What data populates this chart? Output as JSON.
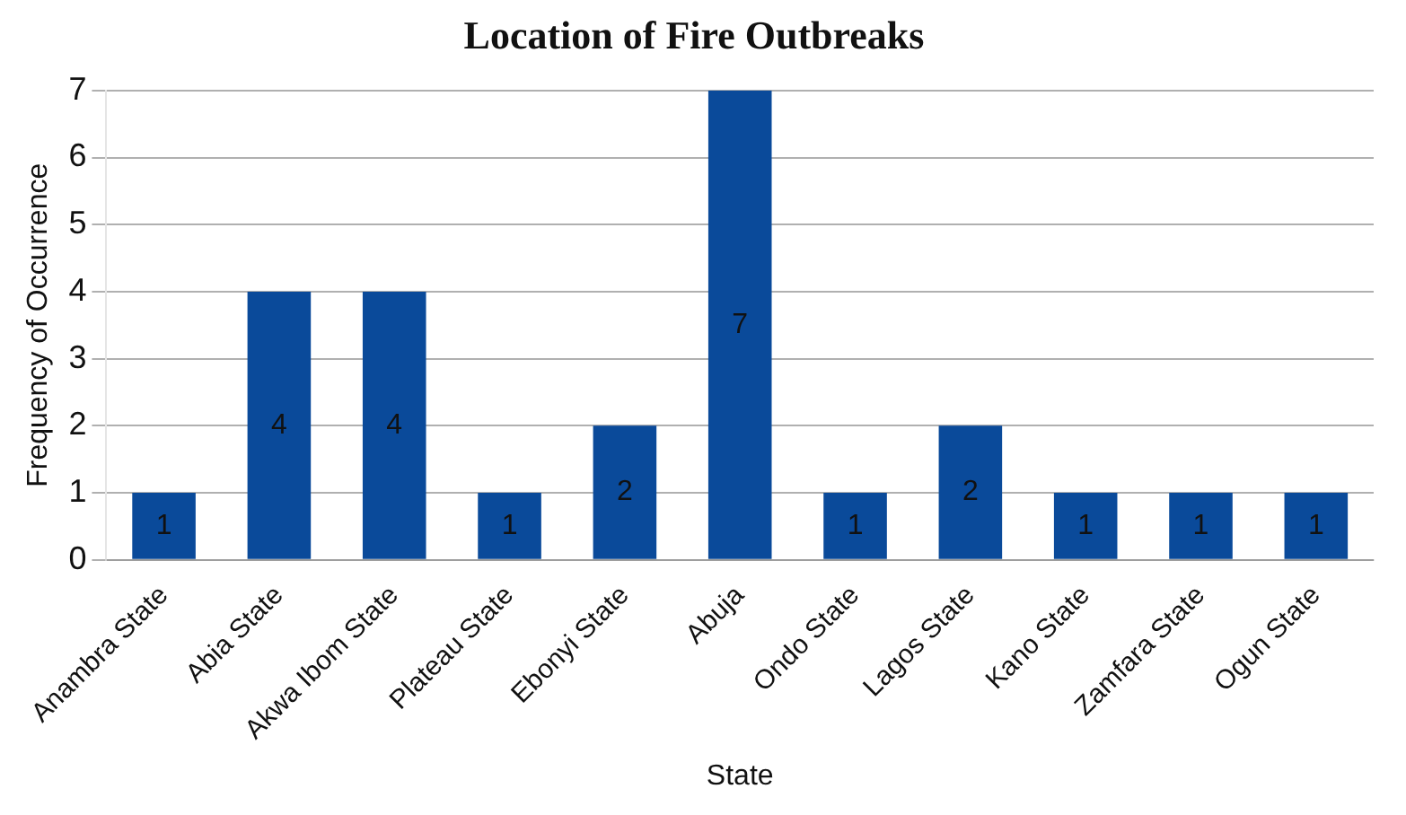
{
  "chart_data": {
    "type": "bar",
    "title": "Location of Fire Outbreaks",
    "xlabel": "State",
    "ylabel": "Frequency of Occurrence",
    "categories": [
      "Anambra State",
      "Abia State",
      "Akwa Ibom State",
      "Plateau State",
      "Ebonyi State",
      "Abuja",
      "Ondo State",
      "Lagos State",
      "Kano State",
      "Zamfara State",
      "Ogun State"
    ],
    "values": [
      1,
      4,
      4,
      1,
      2,
      7,
      1,
      2,
      1,
      1,
      1
    ],
    "color": "#0a4a9a",
    "ylim": [
      0,
      7
    ],
    "yticks": [
      0,
      1,
      2,
      3,
      4,
      5,
      6,
      7
    ],
    "grid": "y",
    "legend": false,
    "data_labels": true
  }
}
